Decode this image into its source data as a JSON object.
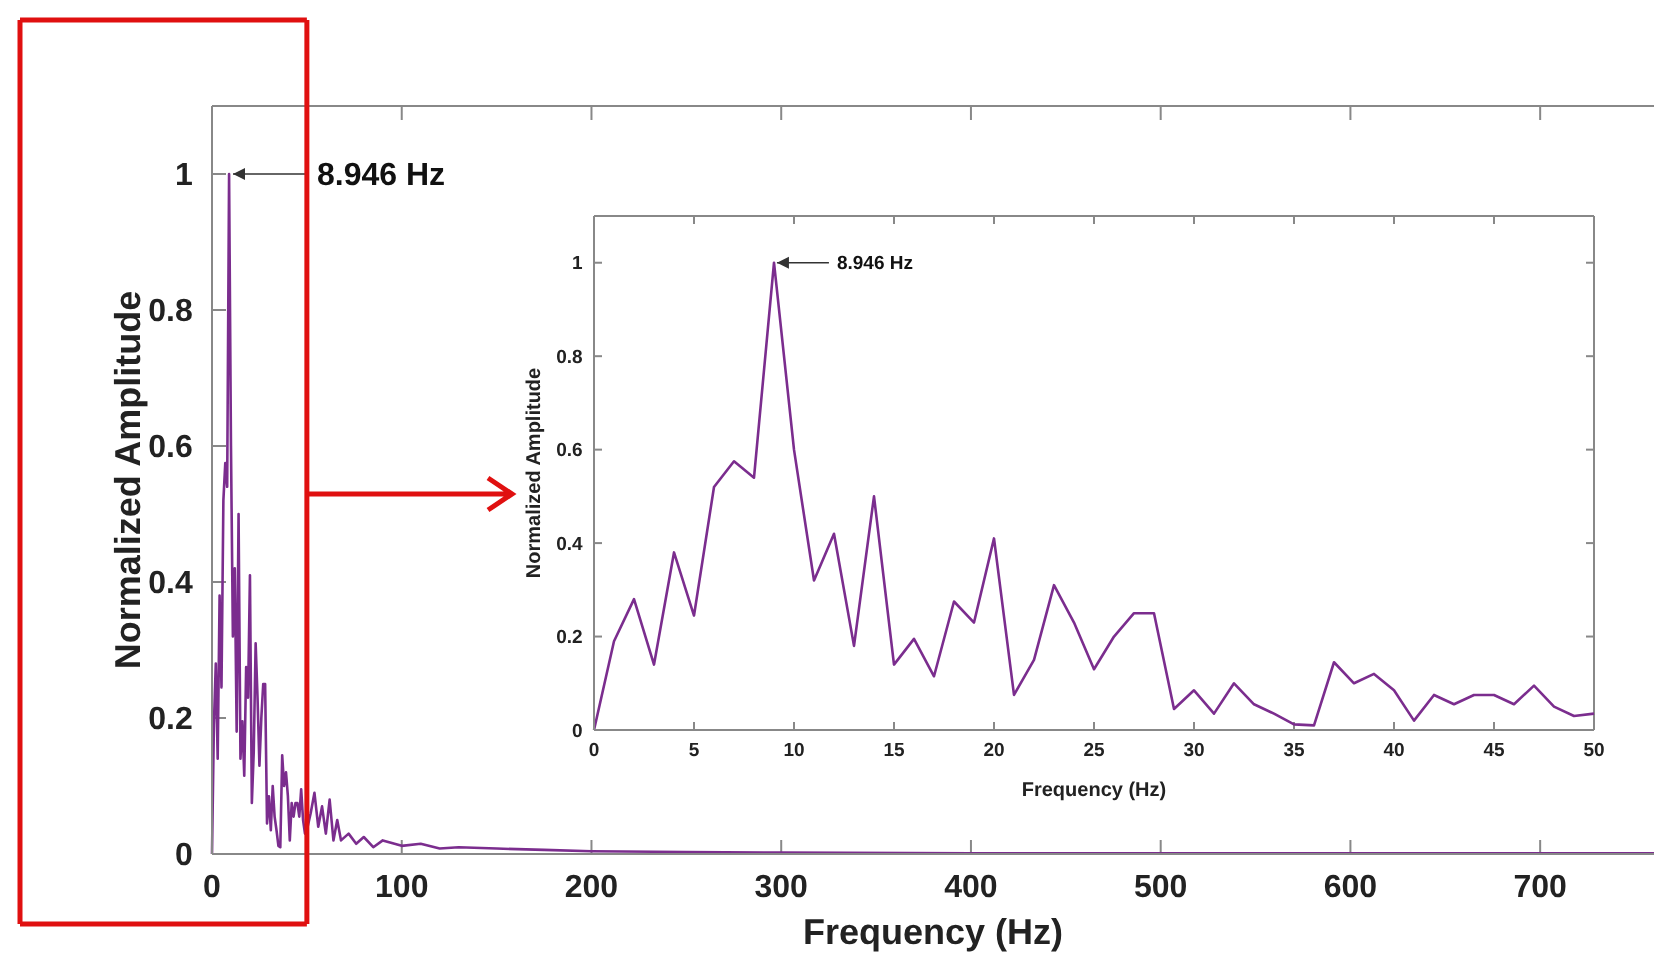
{
  "chart_data": [
    {
      "type": "line",
      "xlabel": "Frequency (Hz)",
      "ylabel": "Normalized Amplitude",
      "xlim": [
        0,
        760
      ],
      "ylim": [
        0,
        1.1
      ],
      "xticks": [
        0,
        100,
        200,
        300,
        400,
        500,
        600,
        700
      ],
      "yticks": [
        0,
        0.2,
        0.4,
        0.6,
        0.8,
        1
      ],
      "grid": false,
      "marker": "none",
      "line_style": "solid",
      "annotations": [
        {
          "text": "8.946 Hz",
          "x": 8.946,
          "y": 1
        }
      ],
      "ref_lines": [
        {
          "axis": "x",
          "value": 50,
          "color": "#e01010"
        }
      ],
      "series": [
        {
          "color": "#7b2d8e",
          "x": [
            0,
            1,
            2,
            3,
            4,
            5,
            6,
            7,
            8,
            9,
            10,
            11,
            12,
            13,
            14,
            15,
            16,
            17,
            18,
            19,
            20,
            21,
            22,
            23,
            24,
            25,
            26,
            27,
            28,
            29,
            30,
            31,
            32,
            33,
            34,
            35,
            36,
            37,
            38,
            39,
            40,
            41,
            42,
            43,
            44,
            45,
            46,
            47,
            48,
            49,
            50,
            52,
            54,
            56,
            58,
            60,
            62,
            64,
            66,
            68,
            72,
            76,
            80,
            85,
            90,
            100,
            110,
            120,
            130,
            150,
            175,
            200,
            250,
            300,
            400,
            500,
            600,
            700,
            760
          ],
          "values": [
            0,
            0.19,
            0.28,
            0.14,
            0.38,
            0.245,
            0.52,
            0.575,
            0.54,
            1,
            0.6,
            0.32,
            0.42,
            0.18,
            0.5,
            0.14,
            0.195,
            0.115,
            0.275,
            0.23,
            0.41,
            0.075,
            0.15,
            0.31,
            0.23,
            0.13,
            0.2,
            0.25,
            0.25,
            0.045,
            0.085,
            0.035,
            0.1,
            0.055,
            0.035,
            0.012,
            0.01,
            0.145,
            0.1,
            0.12,
            0.085,
            0.02,
            0.075,
            0.055,
            0.075,
            0.075,
            0.055,
            0.095,
            0.05,
            0.03,
            0.035,
            0.06,
            0.09,
            0.04,
            0.07,
            0.03,
            0.08,
            0.02,
            0.05,
            0.02,
            0.03,
            0.015,
            0.025,
            0.01,
            0.02,
            0.012,
            0.015,
            0.008,
            0.01,
            0.008,
            0.006,
            0.004,
            0.003,
            0.002,
            0.001,
            0.001,
            0.001,
            0.001,
            0.001
          ]
        }
      ]
    },
    {
      "type": "line",
      "xlabel": "Frequency (Hz)",
      "ylabel": "Normalized Amplitude",
      "xlim": [
        0,
        50
      ],
      "ylim": [
        0,
        1.1
      ],
      "xticks": [
        0,
        5,
        10,
        15,
        20,
        25,
        30,
        35,
        40,
        45,
        50
      ],
      "yticks": [
        0,
        0.2,
        0.4,
        0.6,
        0.8,
        1
      ],
      "grid": false,
      "marker": "none",
      "line_style": "solid",
      "annotations": [
        {
          "text": "8.946 Hz",
          "x": 8.946,
          "y": 1
        }
      ],
      "series": [
        {
          "color": "#7b2d8e",
          "x": [
            0,
            1,
            2,
            3,
            4,
            5,
            6,
            7,
            8,
            9,
            10,
            11,
            12,
            13,
            14,
            15,
            16,
            17,
            18,
            19,
            20,
            21,
            22,
            23,
            24,
            25,
            26,
            27,
            28,
            29,
            30,
            31,
            32,
            33,
            34,
            35,
            36,
            37,
            38,
            39,
            40,
            41,
            42,
            43,
            44,
            45,
            46,
            47,
            48,
            49,
            50
          ],
          "values": [
            0,
            0.19,
            0.28,
            0.14,
            0.38,
            0.245,
            0.52,
            0.575,
            0.54,
            1,
            0.6,
            0.32,
            0.42,
            0.18,
            0.5,
            0.14,
            0.195,
            0.115,
            0.275,
            0.23,
            0.41,
            0.075,
            0.15,
            0.31,
            0.23,
            0.13,
            0.2,
            0.25,
            0.25,
            0.045,
            0.085,
            0.035,
            0.1,
            0.055,
            0.035,
            0.012,
            0.01,
            0.145,
            0.1,
            0.12,
            0.085,
            0.02,
            0.075,
            0.055,
            0.075,
            0.075,
            0.055,
            0.095,
            0.05,
            0.03,
            0.035
          ]
        }
      ]
    }
  ]
}
